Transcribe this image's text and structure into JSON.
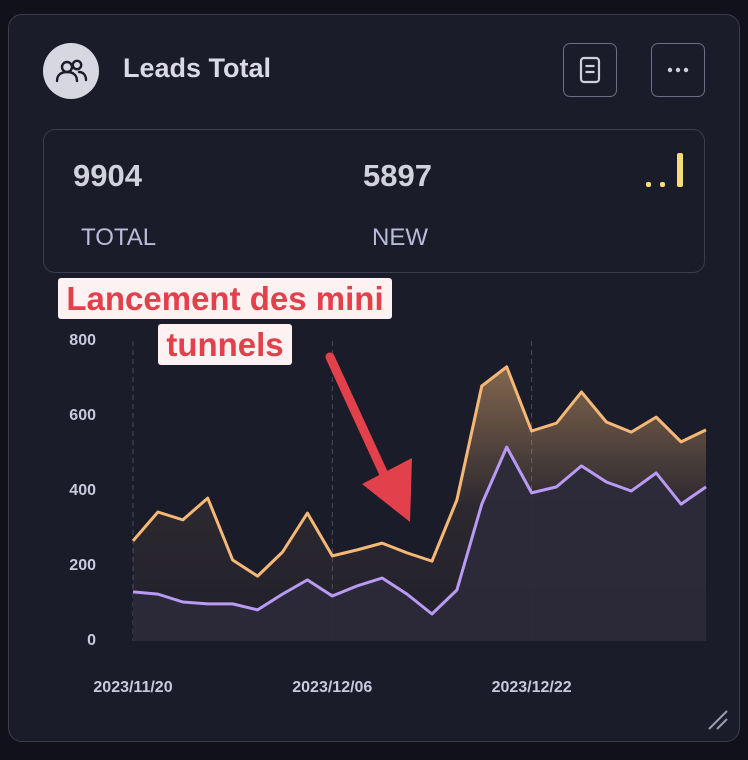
{
  "header": {
    "title": "Leads Total"
  },
  "stats": [
    {
      "value": 9904,
      "label": "TOTAL"
    },
    {
      "value": 5897,
      "label": "NEW"
    }
  ],
  "chart_data": {
    "type": "line",
    "annotation": "Lancement des mini tunnels",
    "categories": [
      "2023/11/20",
      null,
      null,
      null,
      null,
      null,
      null,
      null,
      "2023/12/06",
      null,
      null,
      null,
      null,
      null,
      null,
      null,
      "2023/12/22",
      null,
      null,
      null,
      null,
      null,
      null,
      null
    ],
    "series": [
      {
        "color": "#f5b877",
        "values": [
          267,
          344,
          323,
          381,
          216,
          173,
          237,
          341,
          227,
          243,
          261,
          235,
          213,
          376,
          680,
          731,
          560,
          581,
          664,
          584,
          557,
          597,
          531,
          563
        ]
      },
      {
        "color": "#b99af5",
        "values": [
          131,
          125,
          104,
          99,
          99,
          83,
          125,
          163,
          120,
          147,
          168,
          125,
          72,
          136,
          365,
          517,
          395,
          411,
          467,
          424,
          400,
          448,
          365,
          411
        ]
      }
    ],
    "ylim": [
      0,
      800
    ],
    "yticks": [
      0,
      200,
      400,
      600,
      800
    ],
    "grid": true
  }
}
